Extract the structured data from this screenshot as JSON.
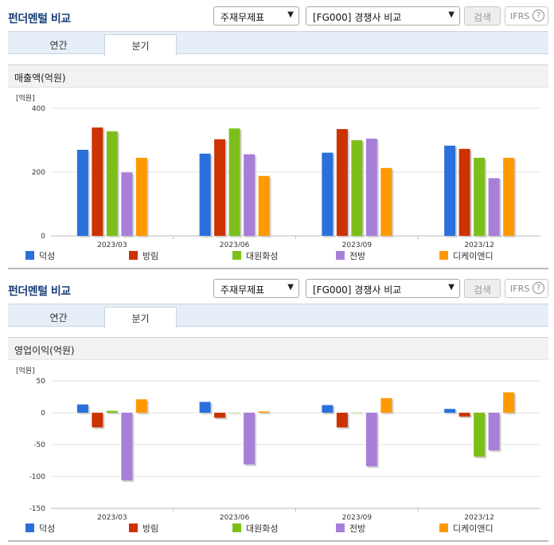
{
  "panels": [
    {
      "title": "펀더멘털 비교",
      "select_type": "주재무제표",
      "select_comp": "[FG000] 경쟁사 비교",
      "search_label": "검색",
      "ifrs_label": "IFRS",
      "ifrs_help": "?",
      "tabs": [
        "연간",
        "분기"
      ],
      "active_tab": 1,
      "chart_title": "매출액(억원)"
    },
    {
      "title": "펀더멘털 비교",
      "select_type": "주재무제표",
      "select_comp": "[FG000] 경쟁사 비교",
      "search_label": "검색",
      "ifrs_label": "IFRS",
      "ifrs_help": "?",
      "tabs": [
        "연간",
        "분기"
      ],
      "active_tab": 1,
      "chart_title": "영업이익(억원)"
    }
  ],
  "chart_data": [
    {
      "type": "bar",
      "title": "매출액(억원)",
      "unit_label": "[억원]",
      "categories": [
        "2023/03",
        "2023/06",
        "2023/09",
        "2023/12"
      ],
      "ylim": [
        0,
        400
      ],
      "yticks": [
        0,
        200,
        400
      ],
      "grid": true,
      "legend_position": "bottom",
      "series": [
        {
          "name": "덕성",
          "color": "#2a6fdb",
          "values": [
            270,
            258,
            261,
            283
          ]
        },
        {
          "name": "방림",
          "color": "#cc3300",
          "values": [
            340,
            303,
            335,
            273
          ]
        },
        {
          "name": "대원화성",
          "color": "#7cbf1a",
          "values": [
            328,
            337,
            300,
            245
          ]
        },
        {
          "name": "전방",
          "color": "#a77fd8",
          "values": [
            199,
            256,
            305,
            181
          ]
        },
        {
          "name": "디케이앤디",
          "color": "#ff9900",
          "values": [
            245,
            188,
            213,
            245
          ]
        }
      ]
    },
    {
      "type": "bar",
      "title": "영업이익(억원)",
      "unit_label": "[억원]",
      "categories": [
        "2023/03",
        "2023/06",
        "2023/09",
        "2023/12"
      ],
      "ylim": [
        -150,
        50
      ],
      "yticks": [
        -150,
        -100,
        -50,
        0,
        50
      ],
      "grid": true,
      "legend_position": "bottom",
      "series": [
        {
          "name": "덕성",
          "color": "#2a6fdb",
          "values": [
            13,
            17,
            12,
            6
          ]
        },
        {
          "name": "방림",
          "color": "#cc3300",
          "values": [
            -23,
            -8,
            -23,
            -6
          ]
        },
        {
          "name": "대원화성",
          "color": "#7cbf1a",
          "values": [
            3,
            0,
            0,
            -69
          ]
        },
        {
          "name": "전방",
          "color": "#a77fd8",
          "values": [
            -106,
            -81,
            -84,
            -59
          ]
        },
        {
          "name": "디케이앤디",
          "color": "#ff9900",
          "values": [
            21,
            2,
            23,
            32
          ]
        }
      ]
    }
  ]
}
